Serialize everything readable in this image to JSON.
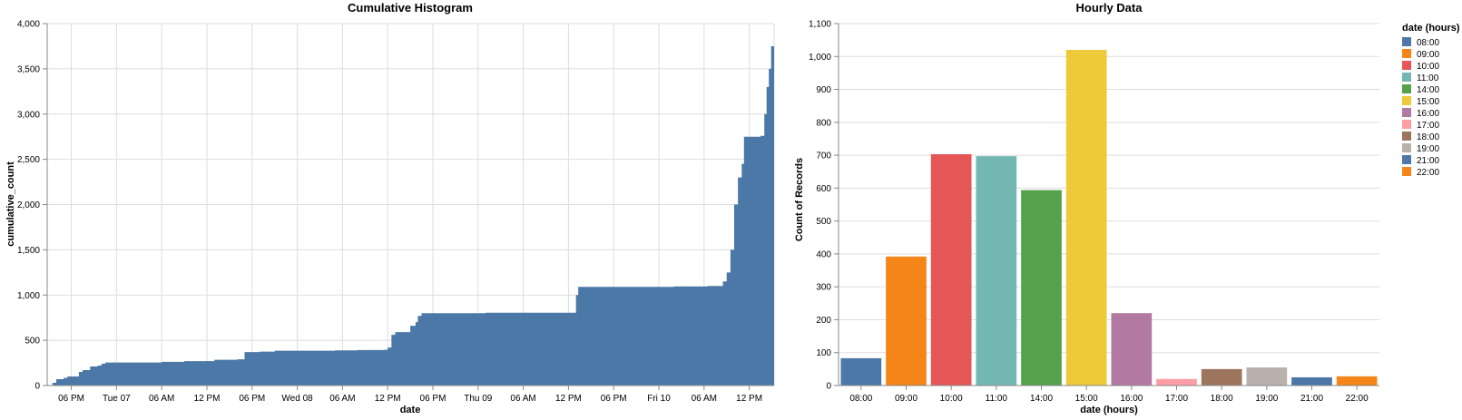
{
  "chart_data": [
    {
      "type": "area",
      "title": "Cumulative Histogram",
      "xlabel": "date",
      "ylabel": "cumulative_count",
      "ylim": [
        0,
        4000
      ],
      "y_ticks": [
        "0",
        "500",
        "1,000",
        "1,500",
        "2,000",
        "2,500",
        "3,000",
        "3,500",
        "4,000"
      ],
      "y_tick_values": [
        0,
        500,
        1000,
        1500,
        2000,
        2500,
        3000,
        3500,
        4000
      ],
      "x_ticks": [
        "06 PM",
        "Tue 07",
        "06 AM",
        "12 PM",
        "06 PM",
        "Wed 08",
        "06 AM",
        "12 PM",
        "06 PM",
        "Thu 09",
        "06 AM",
        "12 PM",
        "06 PM",
        "Fri 10",
        "06 AM",
        "12 PM"
      ],
      "x_tick_hours": [
        18,
        24,
        30,
        36,
        42,
        48,
        54,
        60,
        66,
        72,
        78,
        84,
        90,
        96,
        102,
        108
      ],
      "x_range_hours": [
        14.8,
        111.3
      ],
      "grid": true,
      "color": "#4c78a8",
      "points_hours": [
        [
          14.8,
          0
        ],
        [
          15.5,
          30
        ],
        [
          16.0,
          70
        ],
        [
          17.0,
          85
        ],
        [
          17.5,
          100
        ],
        [
          18.5,
          100
        ],
        [
          19.0,
          150
        ],
        [
          19.5,
          170
        ],
        [
          20.5,
          210
        ],
        [
          21.5,
          220
        ],
        [
          22.0,
          240
        ],
        [
          22.5,
          255
        ],
        [
          30.0,
          262
        ],
        [
          33.0,
          270
        ],
        [
          37.0,
          285
        ],
        [
          40.0,
          290
        ],
        [
          41.0,
          370
        ],
        [
          43.0,
          375
        ],
        [
          45.0,
          385
        ],
        [
          53.0,
          388
        ],
        [
          56.0,
          392
        ],
        [
          59.5,
          395
        ],
        [
          60.0,
          420
        ],
        [
          60.5,
          560
        ],
        [
          61.0,
          590
        ],
        [
          62.5,
          590
        ],
        [
          63.0,
          660
        ],
        [
          63.7,
          700
        ],
        [
          64.0,
          770
        ],
        [
          64.5,
          800
        ],
        [
          68.0,
          800
        ],
        [
          73.0,
          805
        ],
        [
          84.5,
          805
        ],
        [
          85.0,
          1000
        ],
        [
          85.3,
          1090
        ],
        [
          94.0,
          1090
        ],
        [
          98.0,
          1095
        ],
        [
          102.5,
          1100
        ],
        [
          104.0,
          1100
        ],
        [
          104.5,
          1150
        ],
        [
          105.0,
          1250
        ],
        [
          105.5,
          1500
        ],
        [
          106.0,
          2000
        ],
        [
          106.5,
          2300
        ],
        [
          107.0,
          2450
        ],
        [
          107.3,
          2750
        ],
        [
          109.5,
          2760
        ],
        [
          110.0,
          3000
        ],
        [
          110.3,
          3300
        ],
        [
          110.6,
          3500
        ],
        [
          110.9,
          3750
        ],
        [
          111.3,
          3850
        ]
      ]
    },
    {
      "type": "bar",
      "title": "Hourly Data",
      "xlabel": "date (hours)",
      "ylabel": "Count of Records",
      "ylim": [
        0,
        1100
      ],
      "y_ticks": [
        "0",
        "100",
        "200",
        "300",
        "400",
        "500",
        "600",
        "700",
        "800",
        "900",
        "1,000",
        "1,100"
      ],
      "y_tick_values": [
        0,
        100,
        200,
        300,
        400,
        500,
        600,
        700,
        800,
        900,
        1000,
        1100
      ],
      "categories": [
        "08:00",
        "09:00",
        "10:00",
        "11:00",
        "14:00",
        "15:00",
        "16:00",
        "17:00",
        "18:00",
        "19:00",
        "21:00",
        "22:00"
      ],
      "values": [
        83,
        392,
        703,
        697,
        594,
        1020,
        220,
        20,
        50,
        55,
        25,
        28
      ],
      "colors": [
        "#4c78a8",
        "#f58518",
        "#e45756",
        "#72b7b2",
        "#54a24b",
        "#eeca3b",
        "#b279a2",
        "#ff9da6",
        "#9d755d",
        "#bab0ac",
        "#4c78a8",
        "#f58518"
      ],
      "legend": {
        "title": "date (hours)",
        "position": "right",
        "entries": [
          "08:00",
          "09:00",
          "10:00",
          "11:00",
          "14:00",
          "15:00",
          "16:00",
          "17:00",
          "18:00",
          "19:00",
          "21:00",
          "22:00"
        ]
      },
      "grid": true
    }
  ]
}
